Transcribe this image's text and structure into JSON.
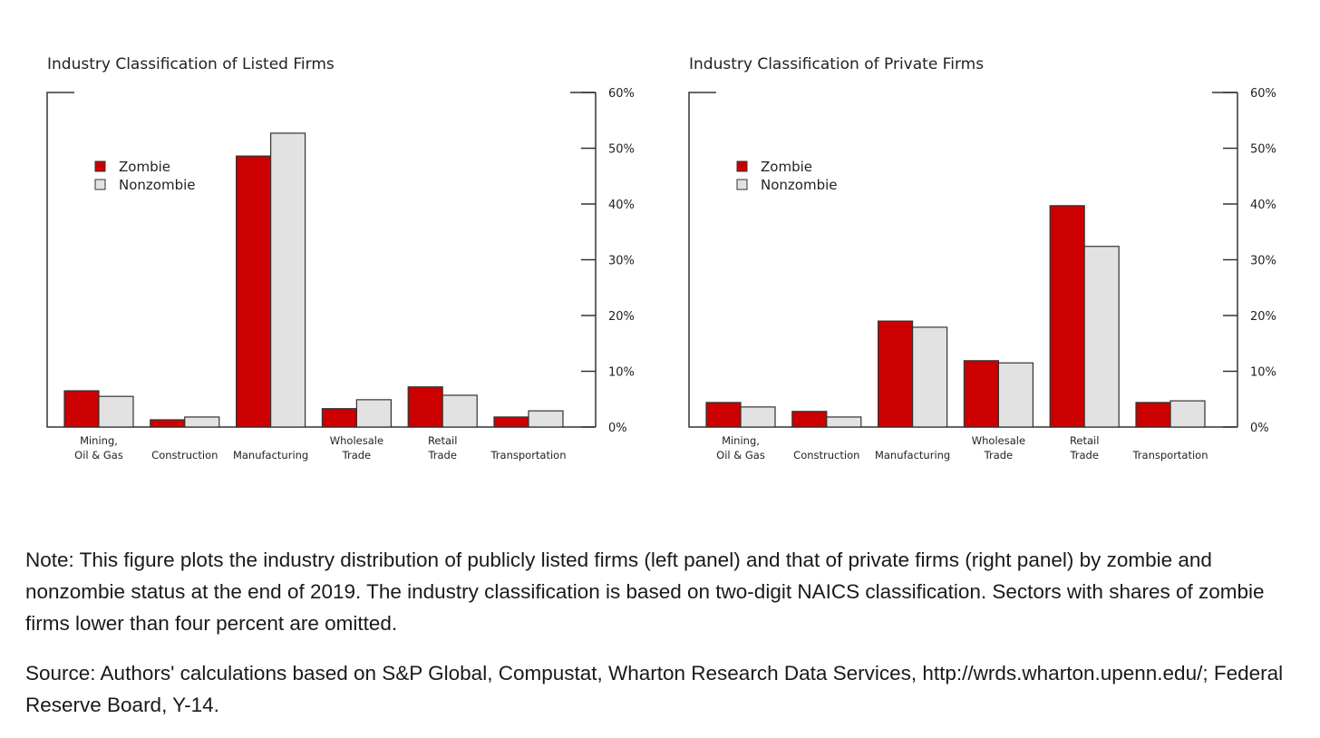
{
  "chart_data": [
    {
      "type": "bar",
      "title": "Industry Classification of Listed Firms",
      "categories": [
        [
          "Mining,",
          "Oil & Gas"
        ],
        [
          "Construction"
        ],
        [
          "Manufacturing"
        ],
        [
          "Wholesale",
          "Trade"
        ],
        [
          "Retail",
          "Trade"
        ],
        [
          "Transportation"
        ]
      ],
      "series": [
        {
          "name": "Zombie",
          "color": "#cc0000",
          "values": [
            6.5,
            1.3,
            48.6,
            3.3,
            7.2,
            1.8
          ]
        },
        {
          "name": "Nonzombie",
          "color": "#e2e2e2",
          "values": [
            5.5,
            1.8,
            52.7,
            4.9,
            5.7,
            2.9
          ]
        }
      ],
      "ylim": [
        0,
        60
      ],
      "yticks": [
        "0%",
        "10%",
        "20%",
        "30%",
        "40%",
        "50%",
        "60%"
      ],
      "yaxis_side": "right",
      "legend_position": "upper-left",
      "xlabel": "",
      "ylabel": ""
    },
    {
      "type": "bar",
      "title": "Industry Classification of Private Firms",
      "categories": [
        [
          "Mining,",
          "Oil & Gas"
        ],
        [
          "Construction"
        ],
        [
          "Manufacturing"
        ],
        [
          "Wholesale",
          "Trade"
        ],
        [
          "Retail",
          "Trade"
        ],
        [
          "Transportation"
        ]
      ],
      "series": [
        {
          "name": "Zombie",
          "color": "#cc0000",
          "values": [
            4.4,
            2.8,
            19.0,
            11.9,
            39.7,
            4.4
          ]
        },
        {
          "name": "Nonzombie",
          "color": "#e2e2e2",
          "values": [
            3.6,
            1.8,
            17.9,
            11.5,
            32.4,
            4.7
          ]
        }
      ],
      "ylim": [
        0,
        60
      ],
      "yticks": [
        "0%",
        "10%",
        "20%",
        "30%",
        "40%",
        "50%",
        "60%"
      ],
      "yaxis_side": "right",
      "legend_position": "upper-left",
      "xlabel": "",
      "ylabel": ""
    }
  ],
  "note": "Note: This figure plots the industry distribution of publicly listed firms (left panel) and that of private firms (right panel) by zombie and nonzombie status at the end of 2019. The industry classification is based on two-digit NAICS classification. Sectors with shares of zombie firms lower than four percent are omitted.",
  "source": "Source: Authors' calculations based on S&P Global, Compustat, Wharton Research Data Services, http://wrds.wharton.upenn.edu/; Federal Reserve Board, Y-14."
}
